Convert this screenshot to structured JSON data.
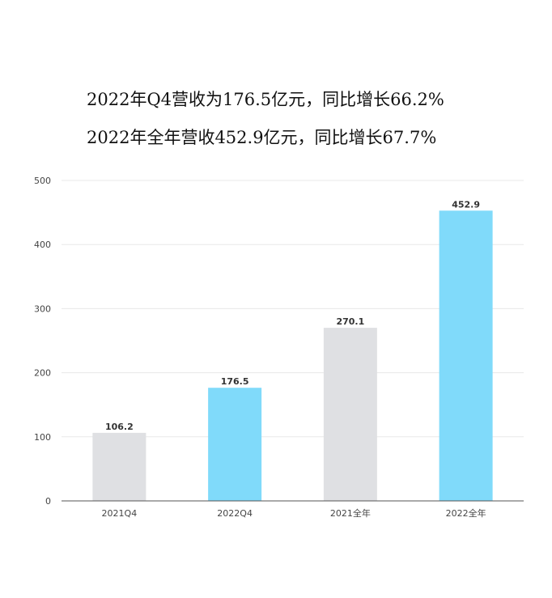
{
  "headline": {
    "line1": "2022年Q4营收为176.5亿元，同比增长66.2%",
    "line2": "2022年全年营收452.9亿元，同比增长67.7%"
  },
  "chart_data": {
    "type": "bar",
    "categories": [
      "2021Q4",
      "2022Q4",
      "2021全年",
      "2022全年"
    ],
    "values": [
      106.2,
      176.5,
      270.1,
      452.9
    ],
    "value_labels": [
      "106.2",
      "176.5",
      "270.1",
      "452.9"
    ],
    "bar_colors": [
      "#dfe0e3",
      "#80dafa",
      "#dfe0e3",
      "#80dafa"
    ],
    "ylim": [
      0,
      500
    ],
    "yticks": [
      "0",
      "100",
      "200",
      "300",
      "400",
      "500"
    ],
    "ytick_values": [
      0,
      100,
      200,
      300,
      400,
      500
    ],
    "grid": true,
    "gridline_color": "#e8e8e8",
    "axis_color": "#555555"
  }
}
